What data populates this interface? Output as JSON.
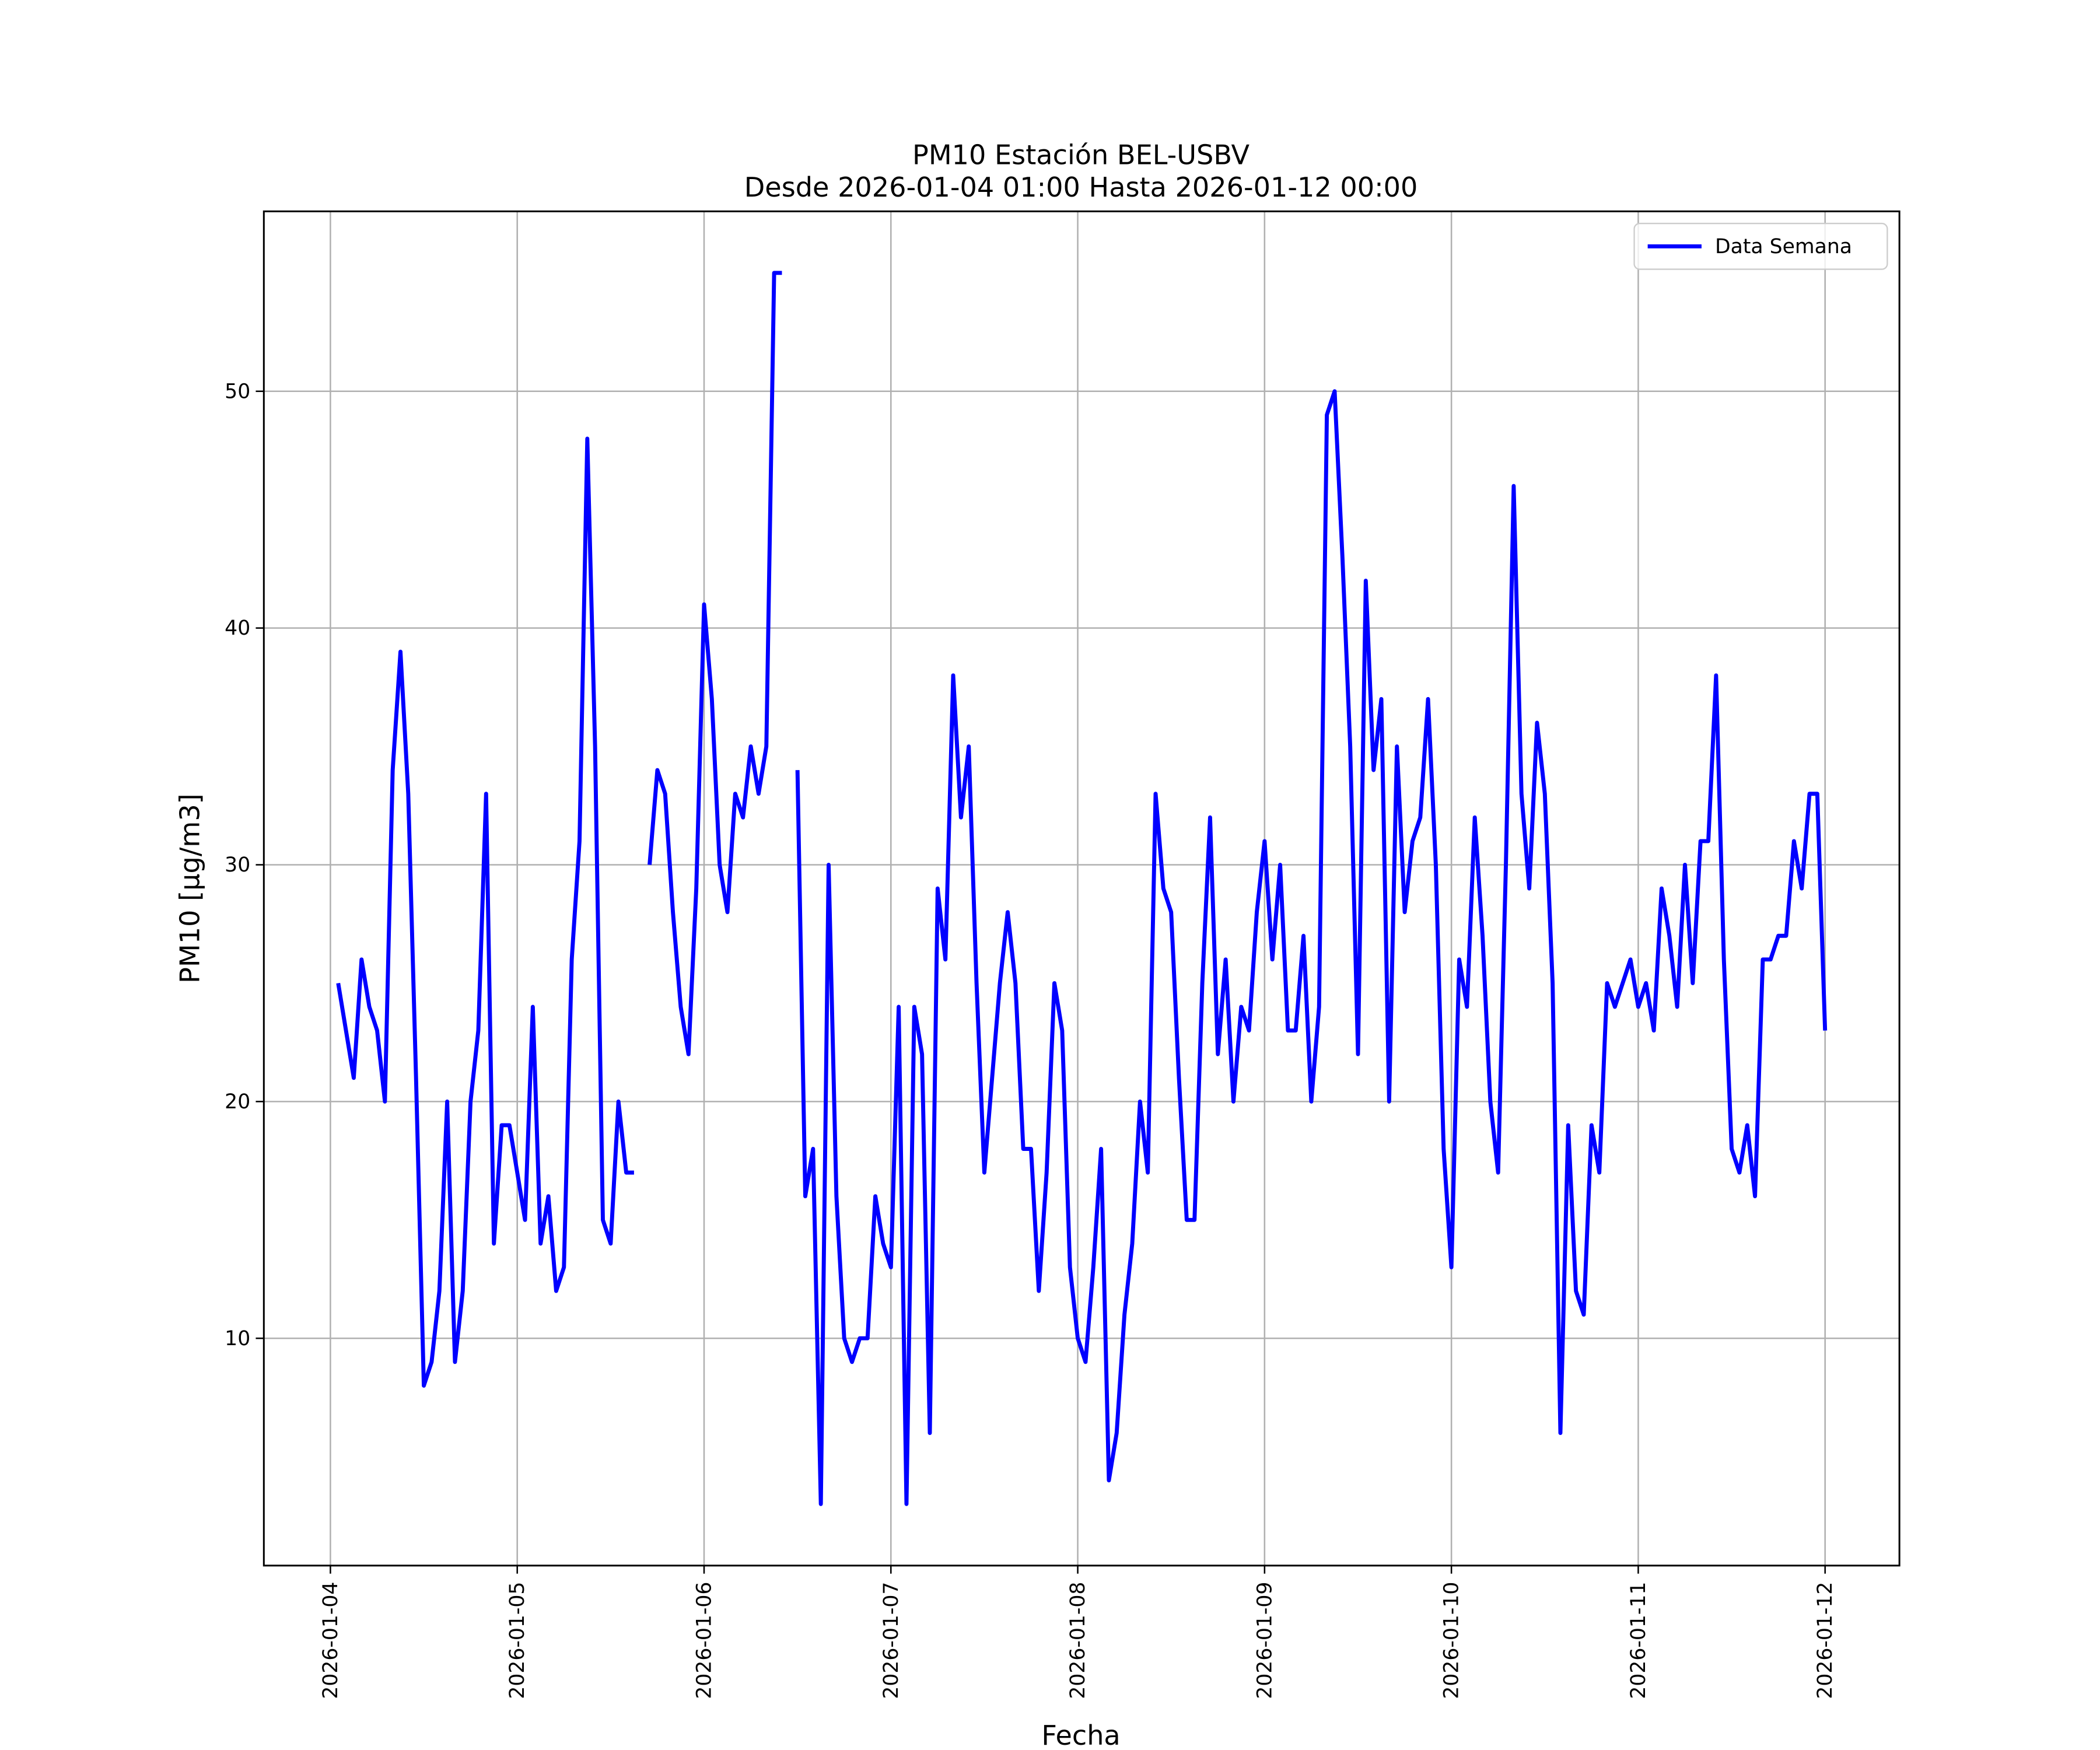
{
  "chart_data": {
    "type": "line",
    "title": "PM10 Estación BEL-USBV",
    "subtitle": "Desde 2026-01-04 01:00 Hasta 2026-01-12 00:00",
    "x_label": "Fecha",
    "y_label": "PM10 [μg/m3]",
    "grid": true,
    "legend": "upper right",
    "xlim": [
      "2026-01-03 15:27",
      "2026-01-12 09:33"
    ],
    "ylim": [
      0.4,
      57.6
    ],
    "xticks": [
      "2026-01-04",
      "2026-01-05",
      "2026-01-06",
      "2026-01-07",
      "2026-01-08",
      "2026-01-09",
      "2026-01-10",
      "2026-01-11",
      "2026-01-12"
    ],
    "yticks": [
      10,
      20,
      30,
      40,
      50
    ],
    "x": [
      "2026-01-04 01:00",
      "2026-01-04 02:00",
      "2026-01-04 03:00",
      "2026-01-04 04:00",
      "2026-01-04 05:00",
      "2026-01-04 06:00",
      "2026-01-04 07:00",
      "2026-01-04 08:00",
      "2026-01-04 09:00",
      "2026-01-04 10:00",
      "2026-01-04 11:00",
      "2026-01-04 12:00",
      "2026-01-04 13:00",
      "2026-01-04 14:00",
      "2026-01-04 15:00",
      "2026-01-04 16:00",
      "2026-01-04 17:00",
      "2026-01-04 18:00",
      "2026-01-04 19:00",
      "2026-01-04 20:00",
      "2026-01-04 21:00",
      "2026-01-04 22:00",
      "2026-01-04 23:00",
      "2026-01-05 00:00",
      "2026-01-05 01:00",
      "2026-01-05 02:00",
      "2026-01-05 03:00",
      "2026-01-05 04:00",
      "2026-01-05 05:00",
      "2026-01-05 06:00",
      "2026-01-05 07:00",
      "2026-01-05 08:00",
      "2026-01-05 09:00",
      "2026-01-05 10:00",
      "2026-01-05 11:00",
      "2026-01-05 12:00",
      "2026-01-05 13:00",
      "2026-01-05 14:00",
      "2026-01-05 15:00",
      "2026-01-05 16:00",
      "2026-01-05 17:00",
      "2026-01-05 18:00",
      "2026-01-05 19:00",
      "2026-01-05 20:00",
      "2026-01-05 21:00",
      "2026-01-05 22:00",
      "2026-01-05 23:00",
      "2026-01-06 00:00",
      "2026-01-06 01:00",
      "2026-01-06 02:00",
      "2026-01-06 03:00",
      "2026-01-06 04:00",
      "2026-01-06 05:00",
      "2026-01-06 06:00",
      "2026-01-06 07:00",
      "2026-01-06 08:00",
      "2026-01-06 09:00",
      "2026-01-06 10:00",
      "2026-01-06 11:00",
      "2026-01-06 12:00",
      "2026-01-06 13:00",
      "2026-01-06 14:00",
      "2026-01-06 15:00",
      "2026-01-06 16:00",
      "2026-01-06 17:00",
      "2026-01-06 18:00",
      "2026-01-06 19:00",
      "2026-01-06 20:00",
      "2026-01-06 21:00",
      "2026-01-06 22:00",
      "2026-01-06 23:00",
      "2026-01-07 00:00",
      "2026-01-07 01:00",
      "2026-01-07 02:00",
      "2026-01-07 03:00",
      "2026-01-07 04:00",
      "2026-01-07 05:00",
      "2026-01-07 06:00",
      "2026-01-07 07:00",
      "2026-01-07 08:00",
      "2026-01-07 09:00",
      "2026-01-07 10:00",
      "2026-01-07 11:00",
      "2026-01-07 12:00",
      "2026-01-07 13:00",
      "2026-01-07 14:00",
      "2026-01-07 15:00",
      "2026-01-07 16:00",
      "2026-01-07 17:00",
      "2026-01-07 18:00",
      "2026-01-07 19:00",
      "2026-01-07 20:00",
      "2026-01-07 21:00",
      "2026-01-07 22:00",
      "2026-01-07 23:00",
      "2026-01-08 00:00",
      "2026-01-08 01:00",
      "2026-01-08 02:00",
      "2026-01-08 03:00",
      "2026-01-08 04:00",
      "2026-01-08 05:00",
      "2026-01-08 06:00",
      "2026-01-08 07:00",
      "2026-01-08 08:00",
      "2026-01-08 09:00",
      "2026-01-08 10:00",
      "2026-01-08 11:00",
      "2026-01-08 12:00",
      "2026-01-08 13:00",
      "2026-01-08 14:00",
      "2026-01-08 15:00",
      "2026-01-08 16:00",
      "2026-01-08 17:00",
      "2026-01-08 18:00",
      "2026-01-08 19:00",
      "2026-01-08 20:00",
      "2026-01-08 21:00",
      "2026-01-08 22:00",
      "2026-01-08 23:00",
      "2026-01-09 00:00",
      "2026-01-09 01:00",
      "2026-01-09 02:00",
      "2026-01-09 03:00",
      "2026-01-09 04:00",
      "2026-01-09 05:00",
      "2026-01-09 06:00",
      "2026-01-09 07:00",
      "2026-01-09 08:00",
      "2026-01-09 09:00",
      "2026-01-09 10:00",
      "2026-01-09 11:00",
      "2026-01-09 12:00",
      "2026-01-09 13:00",
      "2026-01-09 14:00",
      "2026-01-09 15:00",
      "2026-01-09 16:00",
      "2026-01-09 17:00",
      "2026-01-09 18:00",
      "2026-01-09 19:00",
      "2026-01-09 20:00",
      "2026-01-09 21:00",
      "2026-01-09 22:00",
      "2026-01-09 23:00",
      "2026-01-10 00:00",
      "2026-01-10 01:00",
      "2026-01-10 02:00",
      "2026-01-10 03:00",
      "2026-01-10 04:00",
      "2026-01-10 05:00",
      "2026-01-10 06:00",
      "2026-01-10 07:00",
      "2026-01-10 08:00",
      "2026-01-10 09:00",
      "2026-01-10 10:00",
      "2026-01-10 11:00",
      "2026-01-10 12:00",
      "2026-01-10 13:00",
      "2026-01-10 14:00",
      "2026-01-10 15:00",
      "2026-01-10 16:00",
      "2026-01-10 17:00",
      "2026-01-10 18:00",
      "2026-01-10 19:00",
      "2026-01-10 20:00",
      "2026-01-10 21:00",
      "2026-01-10 22:00",
      "2026-01-10 23:00",
      "2026-01-11 00:00",
      "2026-01-11 01:00",
      "2026-01-11 02:00",
      "2026-01-11 03:00",
      "2026-01-11 04:00",
      "2026-01-11 05:00",
      "2026-01-11 06:00",
      "2026-01-11 07:00",
      "2026-01-11 08:00",
      "2026-01-11 09:00",
      "2026-01-11 10:00",
      "2026-01-11 11:00",
      "2026-01-11 12:00",
      "2026-01-11 13:00",
      "2026-01-11 14:00",
      "2026-01-11 15:00",
      "2026-01-11 16:00",
      "2026-01-11 17:00",
      "2026-01-11 18:00",
      "2026-01-11 19:00",
      "2026-01-11 20:00",
      "2026-01-11 21:00",
      "2026-01-11 22:00",
      "2026-01-11 23:00",
      "2026-01-12 00:00"
    ],
    "series": [
      {
        "name": "Data Semana",
        "color": "#0000ff",
        "values": [
          25,
          23,
          21,
          26,
          24,
          23,
          20,
          34,
          39,
          33,
          21,
          8,
          9,
          12,
          20,
          9,
          12,
          20,
          23,
          33,
          14,
          19,
          19,
          17,
          15,
          24,
          14,
          16,
          12,
          13,
          26,
          31,
          48,
          35,
          15,
          14,
          20,
          17,
          17,
          null,
          30,
          34,
          33,
          28,
          24,
          22,
          29,
          41,
          37,
          30,
          28,
          33,
          32,
          35,
          33,
          35,
          55,
          55,
          null,
          34,
          16,
          18,
          3,
          30,
          16,
          10,
          9,
          10,
          10,
          16,
          14,
          13,
          24,
          3,
          24,
          22,
          6,
          29,
          26,
          38,
          32,
          35,
          25,
          17,
          21,
          25,
          28,
          25,
          18,
          18,
          12,
          17,
          25,
          23,
          13,
          10,
          9,
          13,
          18,
          4,
          6,
          11,
          14,
          20,
          17,
          33,
          29,
          28,
          21,
          15,
          15,
          25,
          32,
          22,
          26,
          20,
          24,
          23,
          28,
          31,
          26,
          30,
          23,
          23,
          27,
          20,
          24,
          49,
          50,
          43,
          35,
          22,
          42,
          34,
          37,
          20,
          35,
          28,
          31,
          32,
          37,
          30,
          18,
          13,
          26,
          24,
          32,
          27,
          20,
          17,
          30,
          46,
          33,
          29,
          36,
          33,
          25,
          6,
          19,
          12,
          11,
          19,
          17,
          25,
          24,
          25,
          26,
          24,
          25,
          23,
          29,
          27,
          24,
          30,
          25,
          31,
          31,
          38,
          26,
          18,
          17,
          19,
          16,
          26,
          26,
          27,
          27,
          31,
          29,
          33,
          33,
          23
        ]
      }
    ]
  }
}
